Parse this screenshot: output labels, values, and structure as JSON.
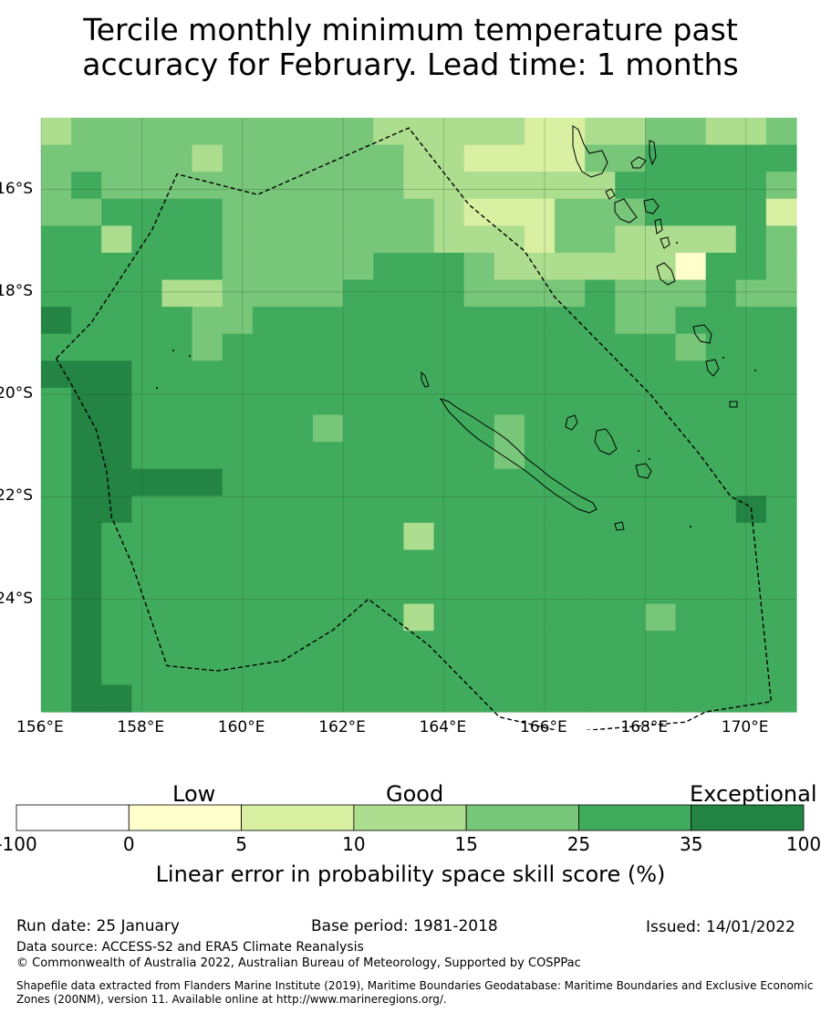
{
  "title_line1": "Tercile monthly minimum temperature past",
  "title_line2": "accuracy for February. Lead time: 1 months",
  "map": {
    "lon_range": [
      156,
      171
    ],
    "lat_range": [
      -26.2,
      -14.6
    ],
    "x_ticks": [
      "156°E",
      "158°E",
      "160°E",
      "162°E",
      "164°E",
      "166°E",
      "168°E",
      "170°E"
    ],
    "y_ticks": [
      "16°S",
      "18°S",
      "20°S",
      "22°S",
      "24°S"
    ],
    "palette": {
      "0": "#ffffcc",
      "1": "#d9f0a3",
      "2": "#addd8e",
      "3": "#78c679",
      "4": "#41ab5d",
      "5": "#238443"
    },
    "grid_rows": [
      "2333333333322222112233223",
      "3333323333332211113344444",
      "3433333333332222222444443",
      "3344443333333211133344441",
      "4424443333333222133222243",
      "4444443333344432222220443",
      "4444223333444433334333433",
      "5444433444444444444334444",
      "4444434444444444444443444",
      "5554444444444444444444444",
      "4554444444444444444444444",
      "4554444443444443444444444",
      "4554444444444443444444444",
      "4555554444444444444444444",
      "4554444444444444444444454",
      "4544444444442444444444444",
      "4544444444444444444444444",
      "4544444444444444444444444",
      "4544444444442444444434444",
      "4544444444444444444444444",
      "4544444444444444444444444",
      "4554444444444444444444444"
    ],
    "eez_boundary": [
      [
        156.3,
        -19.3
      ],
      [
        157.0,
        -18.6
      ],
      [
        158.2,
        -16.8
      ],
      [
        158.7,
        -15.7
      ],
      [
        160.3,
        -16.1
      ],
      [
        163.3,
        -14.8
      ],
      [
        164.5,
        -16.3
      ],
      [
        165.6,
        -17.2
      ],
      [
        166.2,
        -18.1
      ],
      [
        167.1,
        -19.0
      ],
      [
        168.1,
        -20.0
      ],
      [
        169.1,
        -21.2
      ],
      [
        169.7,
        -22.0
      ],
      [
        170.1,
        -22.2
      ],
      [
        170.5,
        -26.0
      ],
      [
        169.2,
        -26.2
      ],
      [
        168.8,
        -26.4
      ],
      [
        166.4,
        -26.6
      ],
      [
        165.1,
        -26.3
      ],
      [
        164.4,
        -25.6
      ],
      [
        163.7,
        -24.9
      ],
      [
        162.5,
        -24.0
      ],
      [
        161.8,
        -24.6
      ],
      [
        160.8,
        -25.2
      ],
      [
        159.5,
        -25.4
      ],
      [
        158.5,
        -25.3
      ],
      [
        157.8,
        -23.3
      ],
      [
        157.4,
        -22.4
      ],
      [
        157.3,
        -21.5
      ],
      [
        157.1,
        -20.7
      ],
      [
        156.6,
        -19.8
      ],
      [
        156.3,
        -19.3
      ]
    ]
  },
  "colorbar": {
    "categories": [
      "Low",
      "Good",
      "Exceptional"
    ],
    "colors": [
      "#ffffff",
      "#ffffcc",
      "#d9f0a3",
      "#addd8e",
      "#78c679",
      "#41ab5d",
      "#238443"
    ],
    "ticks": [
      "-100",
      "0",
      "5",
      "10",
      "15",
      "25",
      "35",
      "100"
    ],
    "label": "Linear error in probability space skill score (%)"
  },
  "footer": {
    "run_date": "Run date: 25 January",
    "base_period": "Base period: 1981-2018",
    "issued": "Issued: 14/01/2022",
    "data_source": "Data source: ACCESS-S2 and ERA5 Climate Reanalysis",
    "copyright": "© Commonwealth of Australia 2022, Australian Bureau of Meteorology, Supported by COSPPac",
    "shapefile": "Shapefile data extracted from Flanders Marine Institute (2019), Maritime Boundaries Geodatabase: Maritime Boundaries and Exclusive Economic Zones (200NM), version 11. Available online at http://www.marineregions.org/."
  }
}
